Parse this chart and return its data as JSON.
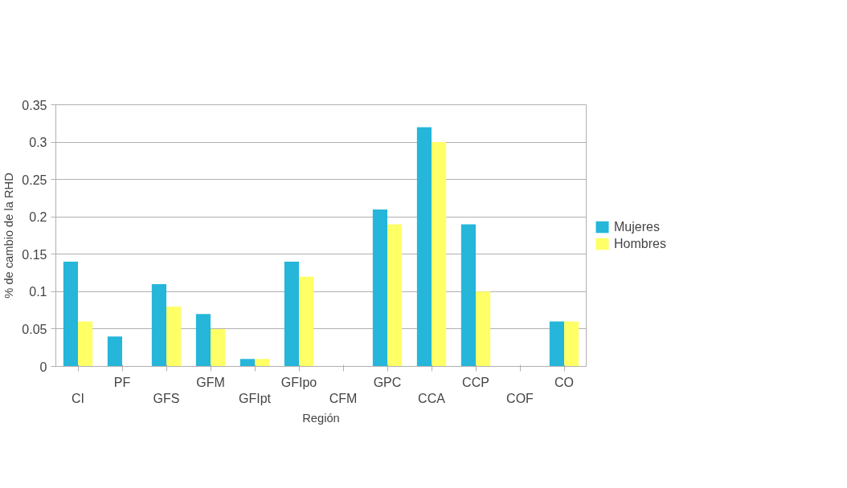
{
  "chart_data": {
    "type": "bar",
    "xlabel": "Región",
    "ylabel": "% de cambio de la RHD",
    "categories": [
      "CI",
      "PF",
      "GFS",
      "GFM",
      "GFIpt",
      "GFIpo",
      "CFM",
      "GPC",
      "CCA",
      "CCP",
      "COF",
      "CO"
    ],
    "series": [
      {
        "name": "Mujeres",
        "color": "#25b6da",
        "values": [
          0.14,
          0.04,
          0.11,
          0.07,
          0.01,
          0.14,
          0,
          0.21,
          0.32,
          0.19,
          0,
          0.06
        ]
      },
      {
        "name": "Hombres",
        "color": "#ffff66",
        "values": [
          0.06,
          0,
          0.08,
          0.05,
          0.01,
          0.12,
          0,
          0.19,
          0.3,
          0.1,
          0,
          0.06
        ]
      }
    ],
    "ylim": [
      0,
      0.35
    ],
    "yticks": [
      0,
      0.05,
      0.1,
      0.15,
      0.2,
      0.25,
      0.3,
      0.35
    ],
    "grid": "y",
    "legend": "right"
  }
}
